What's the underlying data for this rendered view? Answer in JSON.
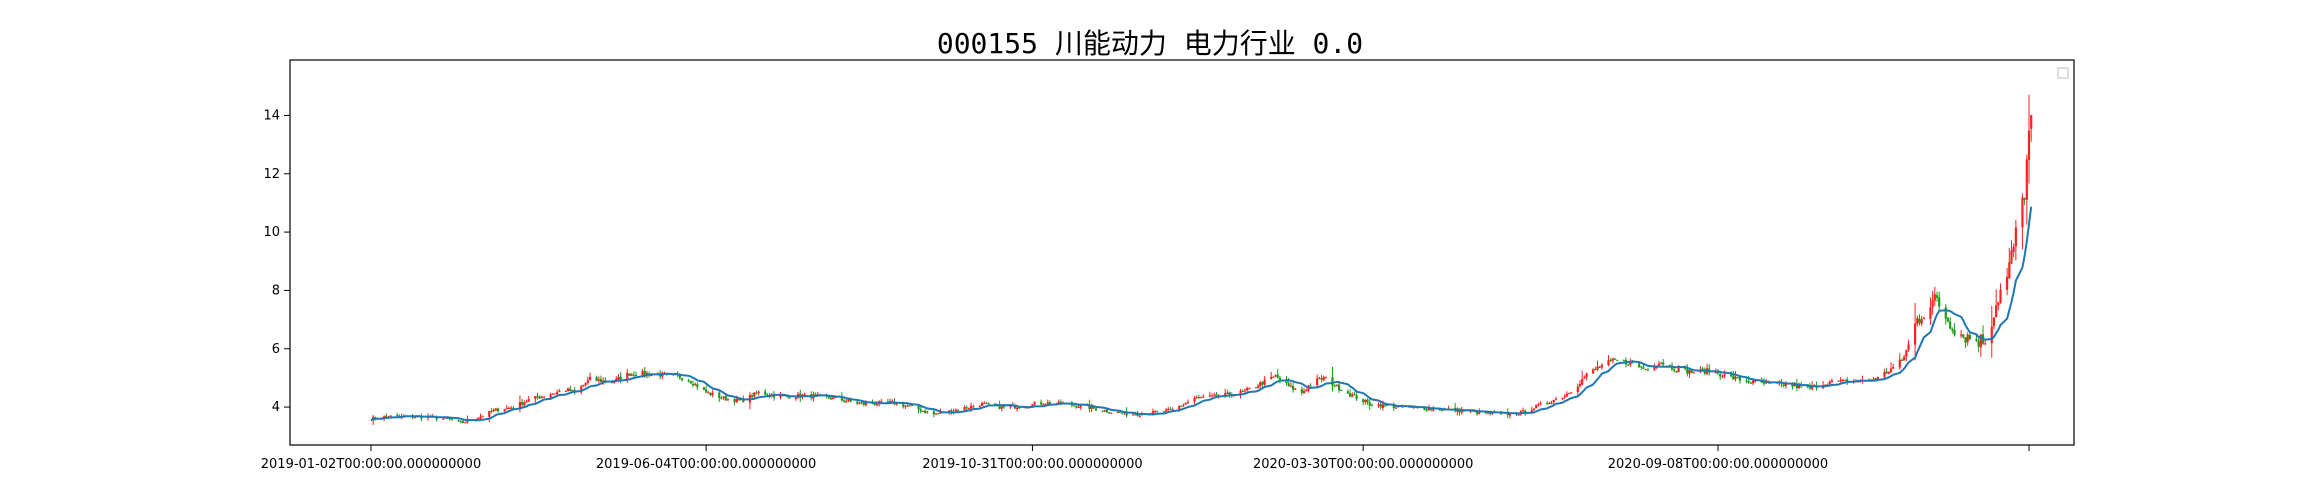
{
  "chart_data": {
    "type": "candlestick",
    "title": "000155 川能动力 电力行业 0.0",
    "xlabel": "",
    "ylabel": "",
    "x_range": [
      "2019-01-02",
      "2021-01-28"
    ],
    "ylim": [
      2.7,
      15.9
    ],
    "y_ticks": [
      4,
      6,
      8,
      10,
      12,
      14
    ],
    "x_ticks": [
      {
        "date": "2019-01-02",
        "label": "2019-01-02T00:00:00.000000000"
      },
      {
        "date": "2019-06-04",
        "label": "2019-06-04T00:00:00.000000000"
      },
      {
        "date": "2019-10-31",
        "label": "2019-10-31T00:00:00.000000000"
      },
      {
        "date": "2020-03-30",
        "label": "2020-03-30T00:00:00.000000000"
      },
      {
        "date": "2020-09-08",
        "label": "2020-09-08T00:00:00.000000000"
      },
      {
        "date": "2021-01-28",
        "label": ""
      }
    ],
    "legend": "top-right",
    "grid": false,
    "colors": {
      "up": "#ff2020",
      "down": "#1a9e1a",
      "ma": "#1f77b4"
    },
    "price_path": [
      [
        "2019-01-02",
        3.6
      ],
      [
        "2019-01-10",
        3.68
      ],
      [
        "2019-01-20",
        3.67
      ],
      [
        "2019-01-28",
        3.66
      ],
      [
        "2019-02-07",
        3.58
      ],
      [
        "2019-02-12",
        3.45
      ],
      [
        "2019-02-20",
        3.65
      ],
      [
        "2019-02-28",
        3.9
      ],
      [
        "2019-03-08",
        4.0
      ],
      [
        "2019-03-15",
        4.25
      ],
      [
        "2019-03-25",
        4.45
      ],
      [
        "2019-04-01",
        4.6
      ],
      [
        "2019-04-05",
        4.5
      ],
      [
        "2019-04-12",
        4.95
      ],
      [
        "2019-04-22",
        4.85
      ],
      [
        "2019-04-30",
        5.15
      ],
      [
        "2019-05-08",
        5.15
      ],
      [
        "2019-05-16",
        5.1
      ],
      [
        "2019-05-26",
        5.0
      ],
      [
        "2019-06-04",
        4.5
      ],
      [
        "2019-06-12",
        4.3
      ],
      [
        "2019-06-20",
        4.2
      ],
      [
        "2019-06-28",
        4.5
      ],
      [
        "2019-07-08",
        4.35
      ],
      [
        "2019-07-20",
        4.4
      ],
      [
        "2019-08-01",
        4.3
      ],
      [
        "2019-08-15",
        4.1
      ],
      [
        "2019-08-28",
        4.15
      ],
      [
        "2019-09-06",
        4.0
      ],
      [
        "2019-09-16",
        3.75
      ],
      [
        "2019-09-26",
        3.9
      ],
      [
        "2019-10-08",
        4.1
      ],
      [
        "2019-10-18",
        3.98
      ],
      [
        "2019-10-28",
        4.05
      ],
      [
        "2019-11-06",
        4.15
      ],
      [
        "2019-11-15",
        4.1
      ],
      [
        "2019-11-25",
        4.0
      ],
      [
        "2019-12-05",
        3.85
      ],
      [
        "2019-12-15",
        3.75
      ],
      [
        "2019-12-25",
        3.8
      ],
      [
        "2020-01-03",
        3.9
      ],
      [
        "2020-01-13",
        4.3
      ],
      [
        "2020-01-22",
        4.35
      ],
      [
        "2020-02-04",
        4.5
      ],
      [
        "2020-02-12",
        4.8
      ],
      [
        "2020-02-19",
        5.05
      ],
      [
        "2020-02-25",
        4.7
      ],
      [
        "2020-03-02",
        4.5
      ],
      [
        "2020-03-07",
        4.85
      ],
      [
        "2020-03-12",
        5.0
      ],
      [
        "2020-03-18",
        4.7
      ],
      [
        "2020-03-25",
        4.4
      ],
      [
        "2020-04-02",
        4.1
      ],
      [
        "2020-04-15",
        4.0
      ],
      [
        "2020-04-28",
        3.95
      ],
      [
        "2020-05-10",
        3.9
      ],
      [
        "2020-05-20",
        3.82
      ],
      [
        "2020-06-01",
        3.75
      ],
      [
        "2020-06-10",
        3.8
      ],
      [
        "2020-06-20",
        4.1
      ],
      [
        "2020-06-30",
        4.4
      ],
      [
        "2020-07-05",
        4.7
      ],
      [
        "2020-07-10",
        5.1
      ],
      [
        "2020-07-16",
        5.4
      ],
      [
        "2020-07-23",
        5.6
      ],
      [
        "2020-07-30",
        5.5
      ],
      [
        "2020-08-06",
        5.3
      ],
      [
        "2020-08-13",
        5.55
      ],
      [
        "2020-08-20",
        5.3
      ],
      [
        "2020-08-27",
        5.2
      ],
      [
        "2020-09-05",
        5.25
      ],
      [
        "2020-09-12",
        5.05
      ],
      [
        "2020-09-20",
        4.9
      ],
      [
        "2020-09-28",
        4.8
      ],
      [
        "2020-10-10",
        4.75
      ],
      [
        "2020-10-20",
        4.65
      ],
      [
        "2020-10-28",
        4.85
      ],
      [
        "2020-11-06",
        4.88
      ],
      [
        "2020-11-14",
        4.9
      ],
      [
        "2020-11-20",
        5.0
      ],
      [
        "2020-11-26",
        5.3
      ],
      [
        "2020-12-01",
        5.6
      ],
      [
        "2020-12-04",
        6.1
      ],
      [
        "2020-12-08",
        7.0
      ],
      [
        "2020-12-13",
        7.5
      ],
      [
        "2020-12-17",
        7.65
      ],
      [
        "2020-12-22",
        7.0
      ],
      [
        "2020-12-28",
        6.5
      ],
      [
        "2021-01-04",
        6.3
      ],
      [
        "2021-01-08",
        6.3
      ],
      [
        "2021-01-11",
        7.0
      ],
      [
        "2021-01-14",
        7.8
      ],
      [
        "2021-01-18",
        8.4
      ],
      [
        "2021-01-21",
        9.5
      ],
      [
        "2021-01-24",
        10.5
      ],
      [
        "2021-01-26",
        11.5
      ],
      [
        "2021-01-28",
        13.2
      ],
      [
        "2021-01-31",
        14.2
      ]
    ]
  }
}
